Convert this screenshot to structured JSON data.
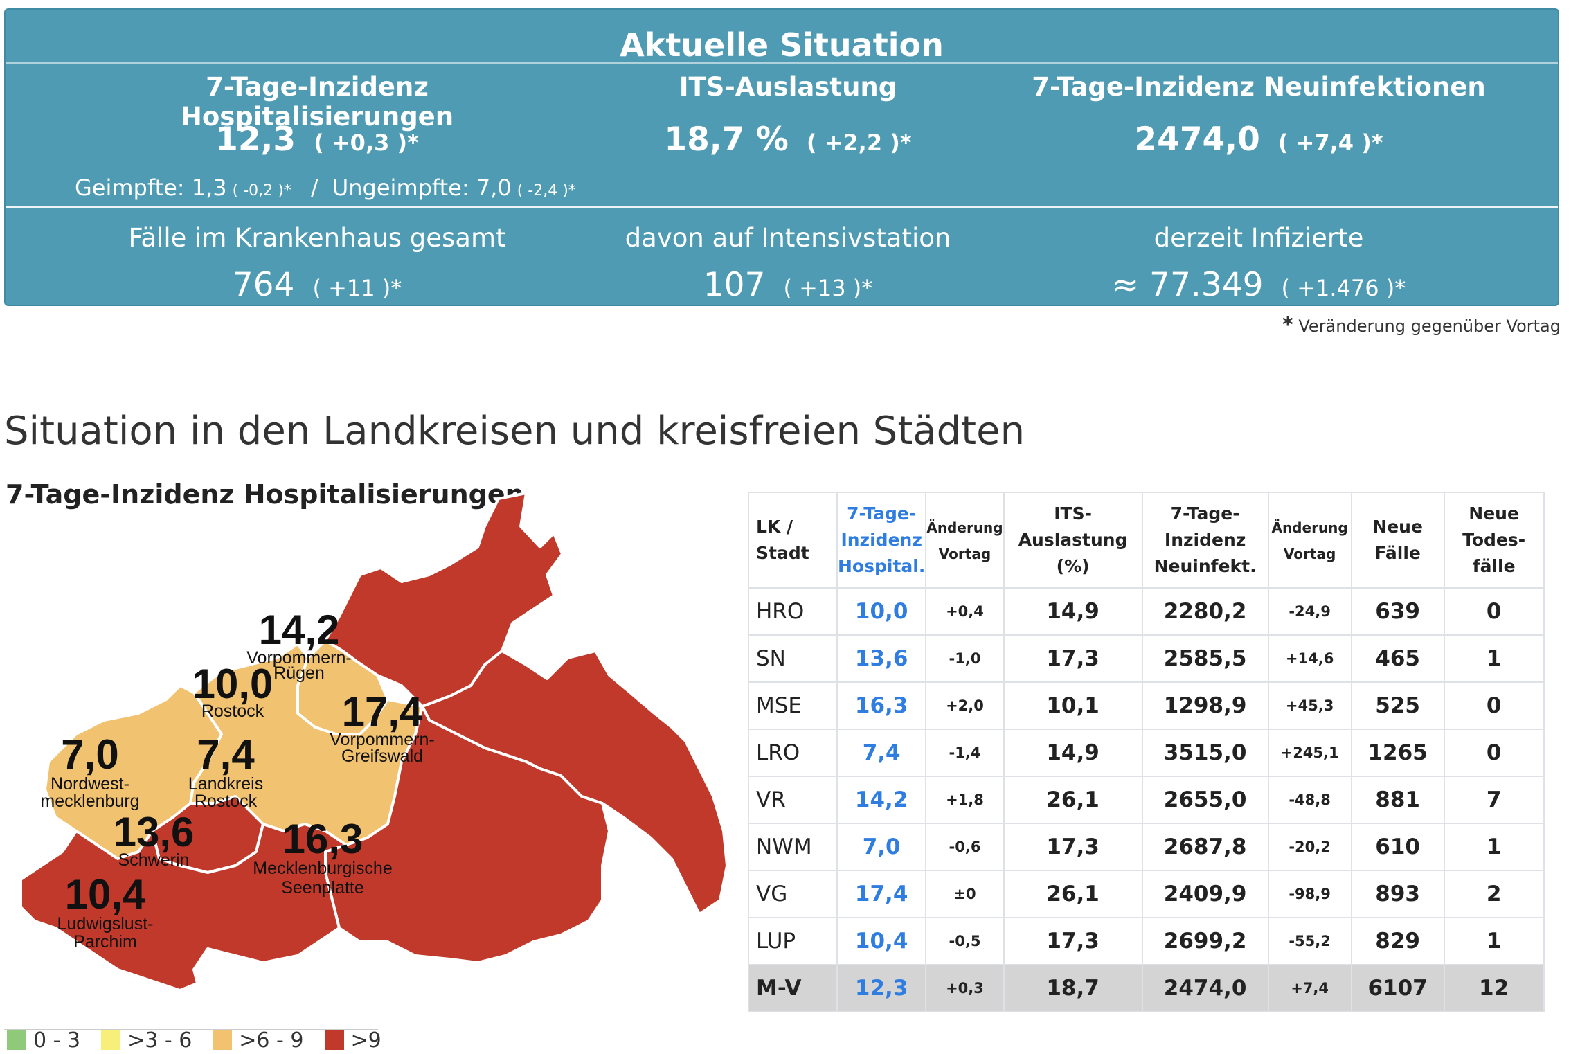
{
  "panel": {
    "title": "Aktuelle Situation",
    "hosp": {
      "label": "7-Tage-Inzidenz Hospitalisierungen",
      "value": "12,3",
      "change": "( +0,3 )*",
      "vacc_label": "Geimpfte: 1,3",
      "vacc_change": "( -0,2 )*",
      "sep": "/",
      "unvacc_label": "Ungeimpfte: 7,0",
      "unvacc_change": "( -2,4 )*"
    },
    "its": {
      "label": "ITS-Auslastung",
      "value": "18,7 %",
      "change": "( +2,2 )*"
    },
    "neu": {
      "label": "7-Tage-Inzidenz Neuinfektionen",
      "value": "2474,0",
      "change": "( +7,4 )*"
    },
    "kh": {
      "label": "Fälle im Krankenhaus gesamt",
      "value": "764",
      "change": "( +11 )*"
    },
    "icu": {
      "label": "davon auf Intensivstation",
      "value": "107",
      "change": "( +13 )*"
    },
    "inf": {
      "label": "derzeit Infizierte",
      "value": "≈ 77.349",
      "change": "( +1.476 )*"
    },
    "note_star": "*",
    "note": "Veränderung gegenüber Vortag"
  },
  "section_title": "Situation in den Landkreisen und kreisfreien Städten",
  "map": {
    "title": "7-Tage-Inzidenz Hospitalisierungen",
    "regions": [
      {
        "value": "14,2",
        "name1": "Vorpommern-",
        "name2": "Rügen",
        "color": "#c0392b"
      },
      {
        "value": "10,0",
        "name1": "Rostock",
        "name2": "",
        "color": "#f1c270"
      },
      {
        "value": "17,4",
        "name1": "Vorpommern-",
        "name2": "Greifswald",
        "color": "#c0392b"
      },
      {
        "value": "7,0",
        "name1": "Nordwest-",
        "name2": "mecklenburg",
        "color": "#f1c270"
      },
      {
        "value": "7,4",
        "name1": "Landkreis",
        "name2": "Rostock",
        "color": "#f1c270"
      },
      {
        "value": "13,6",
        "name1": "Schwerin",
        "name2": "",
        "color": "#c0392b"
      },
      {
        "value": "16,3",
        "name1": "Mecklenburgische",
        "name2": "Seenplatte",
        "color": "#c0392b"
      },
      {
        "value": "10,4",
        "name1": "Ludwigslust-",
        "name2": "Parchim",
        "color": "#c0392b"
      }
    ],
    "legend": [
      {
        "label": "0 - 3",
        "color": "#8fc97a"
      },
      {
        "label": ">3 - 6",
        "color": "#f7ef7a"
      },
      {
        "label": ">6 - 9",
        "color": "#f1c270"
      },
      {
        "label": ">9",
        "color": "#c0392b"
      }
    ]
  },
  "table": {
    "headers": {
      "lk1": "LK /",
      "lk2": "Stadt",
      "hosp1": "7-Tage-",
      "hosp2": "Inzidenz",
      "hosp3": "Hospital.",
      "chg1a": "Änderung",
      "chg1b": "Vortag",
      "its1": "ITS-",
      "its2": "Auslastung",
      "its3": "(%)",
      "neu1": "7-Tage-",
      "neu2": "Inzidenz",
      "neu3": "Neuinfekt.",
      "chg2a": "Änderung",
      "chg2b": "Vortag",
      "nf1": "Neue",
      "nf2": "Fälle",
      "td1": "Neue",
      "td2": "Todes-",
      "td3": "fälle"
    },
    "rows": [
      [
        "HRO",
        "10,0",
        "+0,4",
        "14,9",
        "2280,2",
        "-24,9",
        "639",
        "0"
      ],
      [
        "SN",
        "13,6",
        "-1,0",
        "17,3",
        "2585,5",
        "+14,6",
        "465",
        "1"
      ],
      [
        "MSE",
        "16,3",
        "+2,0",
        "10,1",
        "1298,9",
        "+45,3",
        "525",
        "0"
      ],
      [
        "LRO",
        "7,4",
        "-1,4",
        "14,9",
        "3515,0",
        "+245,1",
        "1265",
        "0"
      ],
      [
        "VR",
        "14,2",
        "+1,8",
        "26,1",
        "2655,0",
        "-48,8",
        "881",
        "7"
      ],
      [
        "NWM",
        "7,0",
        "-0,6",
        "17,3",
        "2687,8",
        "-20,2",
        "610",
        "1"
      ],
      [
        "VG",
        "17,4",
        "±0",
        "26,1",
        "2409,9",
        "-98,9",
        "893",
        "2"
      ],
      [
        "LUP",
        "10,4",
        "-0,5",
        "17,3",
        "2699,2",
        "-55,2",
        "829",
        "1"
      ]
    ],
    "total": [
      "M-V",
      "12,3",
      "+0,3",
      "18,7",
      "2474,0",
      "+7,4",
      "6107",
      "12"
    ]
  }
}
